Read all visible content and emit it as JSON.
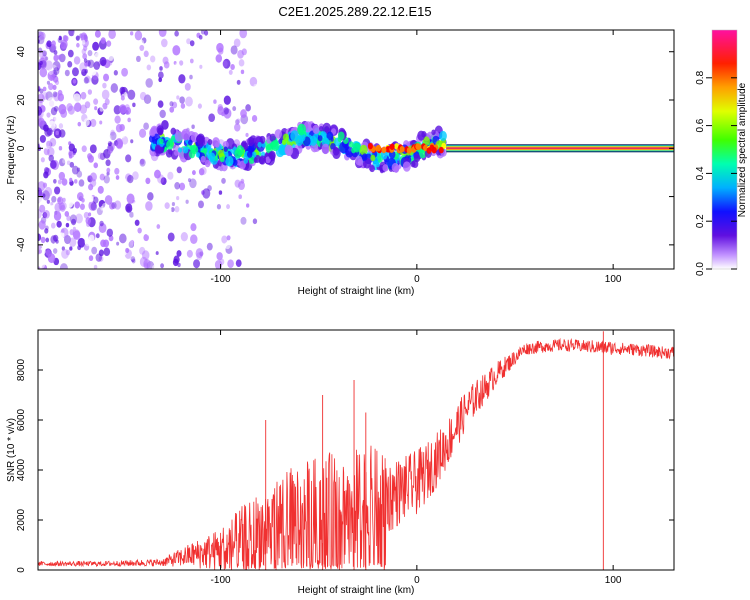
{
  "title": "C2E1.2025.289.22.12.E15",
  "colors": {
    "snr_line": "#f03030",
    "heat_low": "#6a2ad8",
    "steady_line": "#e8305a"
  },
  "chart_data": [
    {
      "type": "heatmap",
      "title": "C2E1.2025.289.22.12.E15",
      "xlabel": "Height of straight line (km)",
      "ylabel": "Frequency (Hz)",
      "xlim": [
        -193,
        131
      ],
      "ylim": [
        -50,
        49
      ],
      "x_ticks": [
        -100,
        0,
        100
      ],
      "x_tick_labels": [
        "-100",
        "0",
        "100"
      ],
      "y_ticks": [
        -40,
        -20,
        0,
        20,
        40
      ],
      "y_tick_labels": [
        "-40",
        "-20",
        "0",
        "20",
        "40"
      ],
      "colorbar": {
        "label": "Normalized spectral amplitude",
        "range": [
          0,
          1
        ],
        "ticks": [
          0.0,
          0.2,
          0.4,
          0.6,
          0.8
        ],
        "tick_labels": [
          "0.0",
          "0.2",
          "0.4",
          "0.6",
          "0.8"
        ],
        "stops": [
          "#ffffff",
          "#b070ff",
          "#5a10e0",
          "#1010ff",
          "#00ccff",
          "#00ff80",
          "#80ff00",
          "#ffff00",
          "#ff8000",
          "#ff0000",
          "#ff10a0"
        ]
      },
      "features": [
        {
          "name": "scattered noise",
          "x_range": [
            -193,
            -100
          ],
          "freq_range": [
            -50,
            49
          ],
          "amplitude": 0.12
        },
        {
          "name": "doppler track",
          "x_range": [
            -135,
            15
          ],
          "freq_approx": 0,
          "amplitude": 0.4
        },
        {
          "name": "steady carrier",
          "x_range": [
            15,
            131
          ],
          "freq": 0,
          "amplitude": 0.95
        }
      ]
    },
    {
      "type": "line",
      "xlabel": "Height of straight line (km)",
      "ylabel": "SNR (10 * v/v)",
      "xlim": [
        -193,
        131
      ],
      "ylim": [
        0,
        9600
      ],
      "x_ticks": [
        -100,
        0,
        100
      ],
      "x_tick_labels": [
        "-100",
        "0",
        "100"
      ],
      "y_ticks": [
        0,
        2000,
        4000,
        6000,
        8000
      ],
      "y_tick_labels": [
        "0",
        "2000",
        "4000",
        "6000",
        "8000"
      ],
      "series": [
        {
          "name": "SNR",
          "x": [
            -193,
            -160,
            -130,
            -115,
            -100,
            -90,
            -80,
            -70,
            -60,
            -50,
            -40,
            -30,
            -22,
            -15,
            -10,
            -5,
            0,
            5,
            10,
            15,
            20,
            25,
            30,
            35,
            40,
            50,
            55,
            65,
            75,
            85,
            95,
            105,
            115,
            125,
            131
          ],
          "values": [
            250,
            250,
            300,
            600,
            800,
            1200,
            1600,
            2000,
            2300,
            2400,
            2500,
            2600,
            2700,
            2900,
            3100,
            3300,
            3500,
            3900,
            4400,
            5000,
            5700,
            6400,
            6900,
            7300,
            7800,
            8500,
            8850,
            8950,
            9000,
            8950,
            8900,
            8850,
            8800,
            8700,
            8700
          ],
          "amplitude": [
            100,
            100,
            150,
            500,
            900,
            1300,
            1600,
            1800,
            2000,
            2200,
            2300,
            2300,
            2300,
            1500,
            1400,
            1300,
            1300,
            1200,
            1100,
            1000,
            900,
            800,
            700,
            600,
            500,
            300,
            250,
            250,
            250,
            250,
            300,
            250,
            250,
            250,
            250
          ]
        }
      ],
      "spikes": [
        {
          "x": -48,
          "y": 7000
        },
        {
          "x": -32,
          "y": 7600
        },
        {
          "x": -77,
          "y": 6000
        },
        {
          "x": -26,
          "y": 6300
        },
        {
          "x": 95,
          "y": 9550
        }
      ]
    }
  ]
}
